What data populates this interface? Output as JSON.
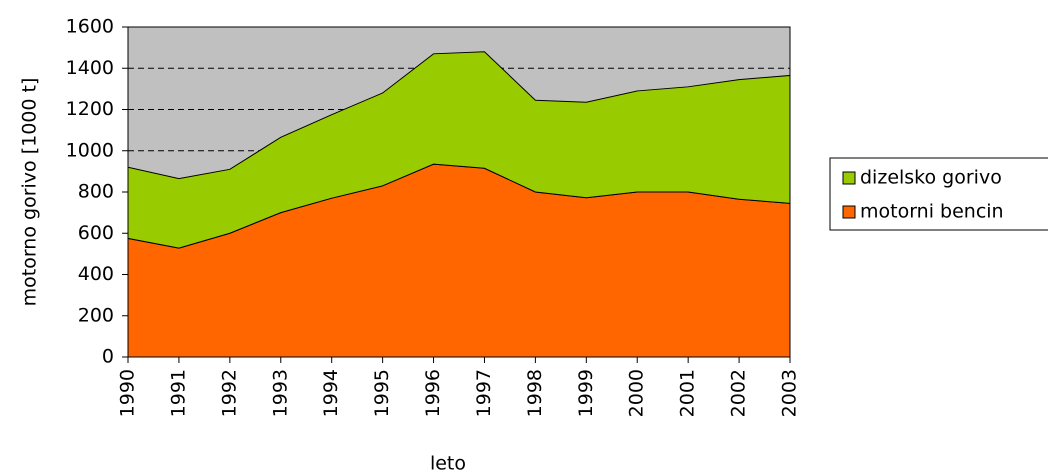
{
  "chart_data": {
    "type": "area",
    "stacked": true,
    "x_label": "leto",
    "y_label": "motorno gorivo [1000 t]",
    "categories": [
      "1990",
      "1991",
      "1992",
      "1993",
      "1994",
      "1995",
      "1996",
      "1997",
      "1998",
      "1999",
      "2000",
      "2001",
      "2002",
      "2003"
    ],
    "series": [
      {
        "name": "motorni bencin",
        "color": "#ff6600",
        "values": [
          575,
          528,
          600,
          700,
          770,
          830,
          935,
          915,
          800,
          772,
          800,
          800,
          765,
          745
        ]
      },
      {
        "name": "dizelsko gorivo",
        "color": "#99cc00",
        "values": [
          345,
          337,
          310,
          365,
          405,
          450,
          535,
          565,
          445,
          463,
          490,
          510,
          580,
          620
        ]
      }
    ],
    "ylim": [
      0,
      1600
    ],
    "yticks": [
      0,
      200,
      400,
      600,
      800,
      1000,
      1200,
      1400,
      1600
    ],
    "grid": true,
    "background": "#c0c0c0",
    "legend": "right"
  }
}
